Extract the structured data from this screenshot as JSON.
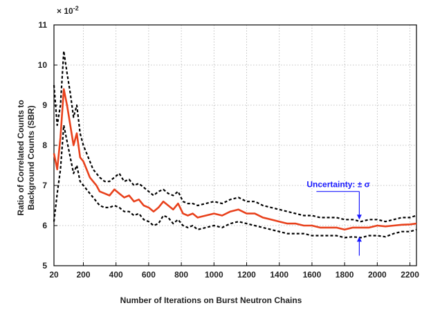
{
  "chart_data": {
    "type": "line",
    "xlabel": "Number of Iterations on Burst Neutron Chains",
    "ylabel_line1": "Ratio of Correlated Counts to",
    "ylabel_line2": "Background Counts (SBR)",
    "y_multiplier_base": "× 10",
    "y_multiplier_exp": "-2",
    "xlim": [
      20,
      2240
    ],
    "ylim": [
      5,
      11
    ],
    "x_ticks": [
      20,
      200,
      400,
      600,
      800,
      1000,
      1200,
      1400,
      1600,
      1800,
      2000,
      2200
    ],
    "y_ticks": [
      5,
      6,
      7,
      8,
      9,
      10,
      11
    ],
    "x_tick_labels": [
      "20",
      "200",
      "400",
      "600",
      "800",
      "1000",
      "1200",
      "1400",
      "1600",
      "1800",
      "2000",
      "2200"
    ],
    "y_tick_labels": [
      "5",
      "6",
      "7",
      "8",
      "9",
      "10",
      "11"
    ],
    "grid": true,
    "series": [
      {
        "role": "mean",
        "color": "#e8411c",
        "x": [
          20,
          40,
          60,
          80,
          100,
          120,
          140,
          160,
          180,
          200,
          220,
          240,
          260,
          280,
          300,
          330,
          360,
          390,
          420,
          450,
          480,
          510,
          540,
          570,
          600,
          630,
          660,
          690,
          720,
          750,
          780,
          810,
          840,
          870,
          900,
          950,
          1000,
          1050,
          1100,
          1150,
          1200,
          1250,
          1300,
          1350,
          1400,
          1450,
          1500,
          1550,
          1600,
          1650,
          1700,
          1750,
          1800,
          1850,
          1900,
          1950,
          2000,
          2050,
          2100,
          2150,
          2200,
          2240
        ],
        "y": [
          7.8,
          7.4,
          8.2,
          9.4,
          9.0,
          8.5,
          8.0,
          8.3,
          7.7,
          7.6,
          7.4,
          7.2,
          7.1,
          7.0,
          6.85,
          6.8,
          6.75,
          6.9,
          6.8,
          6.7,
          6.75,
          6.6,
          6.65,
          6.5,
          6.45,
          6.35,
          6.45,
          6.6,
          6.5,
          6.4,
          6.55,
          6.3,
          6.25,
          6.3,
          6.2,
          6.25,
          6.3,
          6.25,
          6.35,
          6.4,
          6.3,
          6.3,
          6.2,
          6.15,
          6.1,
          6.05,
          6.05,
          6.0,
          6.0,
          5.95,
          5.95,
          5.95,
          5.9,
          5.95,
          5.95,
          5.95,
          6.0,
          5.98,
          6.0,
          6.02,
          6.03,
          6.05
        ]
      },
      {
        "role": "upper",
        "color": "#000000",
        "x": [
          20,
          40,
          60,
          80,
          100,
          120,
          140,
          160,
          180,
          200,
          220,
          240,
          260,
          280,
          300,
          330,
          360,
          390,
          420,
          450,
          480,
          510,
          540,
          570,
          600,
          630,
          660,
          690,
          720,
          750,
          780,
          810,
          840,
          870,
          900,
          950,
          1000,
          1050,
          1100,
          1150,
          1200,
          1250,
          1300,
          1350,
          1400,
          1450,
          1500,
          1550,
          1600,
          1650,
          1700,
          1750,
          1800,
          1850,
          1900,
          1950,
          2000,
          2050,
          2100,
          2150,
          2200,
          2240
        ],
        "y": [
          9.5,
          8.5,
          9.0,
          10.35,
          9.8,
          9.3,
          8.7,
          9.0,
          8.3,
          8.0,
          7.8,
          7.6,
          7.4,
          7.3,
          7.2,
          7.1,
          7.1,
          7.2,
          7.3,
          7.1,
          7.15,
          7.0,
          7.05,
          6.95,
          6.85,
          6.75,
          6.85,
          6.9,
          6.8,
          6.75,
          6.85,
          6.6,
          6.55,
          6.55,
          6.5,
          6.55,
          6.6,
          6.55,
          6.65,
          6.7,
          6.6,
          6.6,
          6.5,
          6.45,
          6.4,
          6.35,
          6.3,
          6.25,
          6.25,
          6.2,
          6.2,
          6.2,
          6.15,
          6.15,
          6.1,
          6.15,
          6.15,
          6.1,
          6.15,
          6.2,
          6.2,
          6.25
        ]
      },
      {
        "role": "lower",
        "color": "#000000",
        "x": [
          20,
          40,
          60,
          80,
          100,
          120,
          140,
          160,
          180,
          200,
          220,
          240,
          260,
          280,
          300,
          330,
          360,
          390,
          420,
          450,
          480,
          510,
          540,
          570,
          600,
          630,
          660,
          690,
          720,
          750,
          780,
          810,
          840,
          870,
          900,
          950,
          1000,
          1050,
          1100,
          1150,
          1200,
          1250,
          1300,
          1350,
          1400,
          1450,
          1500,
          1550,
          1600,
          1650,
          1700,
          1750,
          1800,
          1850,
          1900,
          1950,
          2000,
          2050,
          2100,
          2150,
          2200,
          2240
        ],
        "y": [
          6.1,
          6.8,
          7.4,
          8.5,
          8.1,
          7.7,
          7.3,
          7.5,
          7.1,
          7.0,
          6.9,
          6.8,
          6.7,
          6.6,
          6.5,
          6.45,
          6.45,
          6.5,
          6.45,
          6.35,
          6.35,
          6.25,
          6.3,
          6.15,
          6.1,
          6.0,
          6.05,
          6.25,
          6.2,
          6.05,
          6.15,
          6.0,
          5.95,
          6.0,
          5.9,
          5.95,
          6.0,
          5.95,
          6.05,
          6.1,
          6.05,
          6.0,
          5.95,
          5.9,
          5.85,
          5.8,
          5.8,
          5.8,
          5.75,
          5.75,
          5.75,
          5.75,
          5.7,
          5.72,
          5.7,
          5.75,
          5.75,
          5.72,
          5.8,
          5.85,
          5.85,
          5.9
        ]
      }
    ],
    "annotation": {
      "text": "Uncertainty: ± σ",
      "color": "#1a1aff",
      "arrow_x": 1890,
      "arrow_top_from": 6.85,
      "arrow_top_to": 6.15,
      "arrow_bottom_from": 5.25,
      "arrow_bottom_to": 5.72
    }
  }
}
